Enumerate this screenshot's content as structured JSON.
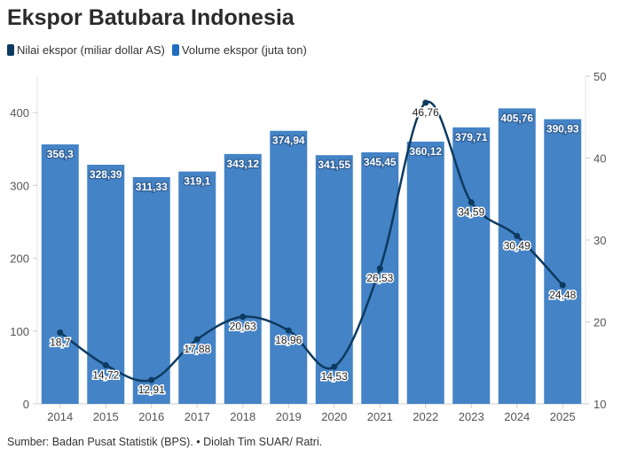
{
  "title": "Ekspor Batubara Indonesia",
  "legend": [
    {
      "label": "Nilai ekspor (miliar dollar AS)",
      "color": "#0d3a5f"
    },
    {
      "label": "Volume ekspor (juta ton)",
      "color": "#1f6dbf"
    }
  ],
  "footer": "Sumber: Badan Pusat Statistik (BPS). • Diolah Tim SUAR/ Ratri.",
  "chart_data": {
    "type": "bar+line",
    "title": "Ekspor Batubara Indonesia",
    "categories": [
      "2014",
      "2015",
      "2016",
      "2017",
      "2018",
      "2019",
      "2020",
      "2021",
      "2022",
      "2023",
      "2024",
      "2025"
    ],
    "series": [
      {
        "name": "Volume ekspor (juta ton)",
        "type": "bar",
        "axis": "left",
        "color": "#4483c6",
        "values": [
          356.3,
          328.39,
          311.33,
          319.1,
          343.12,
          374.94,
          341.55,
          345.45,
          360.12,
          379.71,
          405.76,
          390.93
        ],
        "labels": [
          "356,3",
          "328,39",
          "311,33",
          "319,1",
          "343,12",
          "374,94",
          "341,55",
          "345,45",
          "360,12",
          "379,71",
          "405,76",
          "390,93"
        ]
      },
      {
        "name": "Nilai ekspor (miliar dollar AS)",
        "type": "line",
        "axis": "right",
        "color": "#0d3a5f",
        "values": [
          18.7,
          14.72,
          12.91,
          17.88,
          20.63,
          18.96,
          14.53,
          26.53,
          46.76,
          34.59,
          30.49,
          24.48
        ],
        "labels": [
          "18,7",
          "14,72",
          "12,91",
          "17,88",
          "20,63",
          "18,96",
          "14,53",
          "26,53",
          "46,76",
          "34,59",
          "30,49",
          "24,48"
        ]
      }
    ],
    "left_axis": {
      "ylim": [
        0,
        450
      ],
      "ticks": [
        "0",
        "100",
        "200",
        "300",
        "400"
      ],
      "tick_values": [
        0,
        100,
        200,
        300,
        400
      ]
    },
    "right_axis": {
      "ylim": [
        10,
        50
      ],
      "ticks": [
        "10",
        "20",
        "30",
        "40",
        "50"
      ],
      "tick_values": [
        10,
        20,
        30,
        40,
        50
      ]
    },
    "grid": false,
    "legend_position": "top-left"
  }
}
